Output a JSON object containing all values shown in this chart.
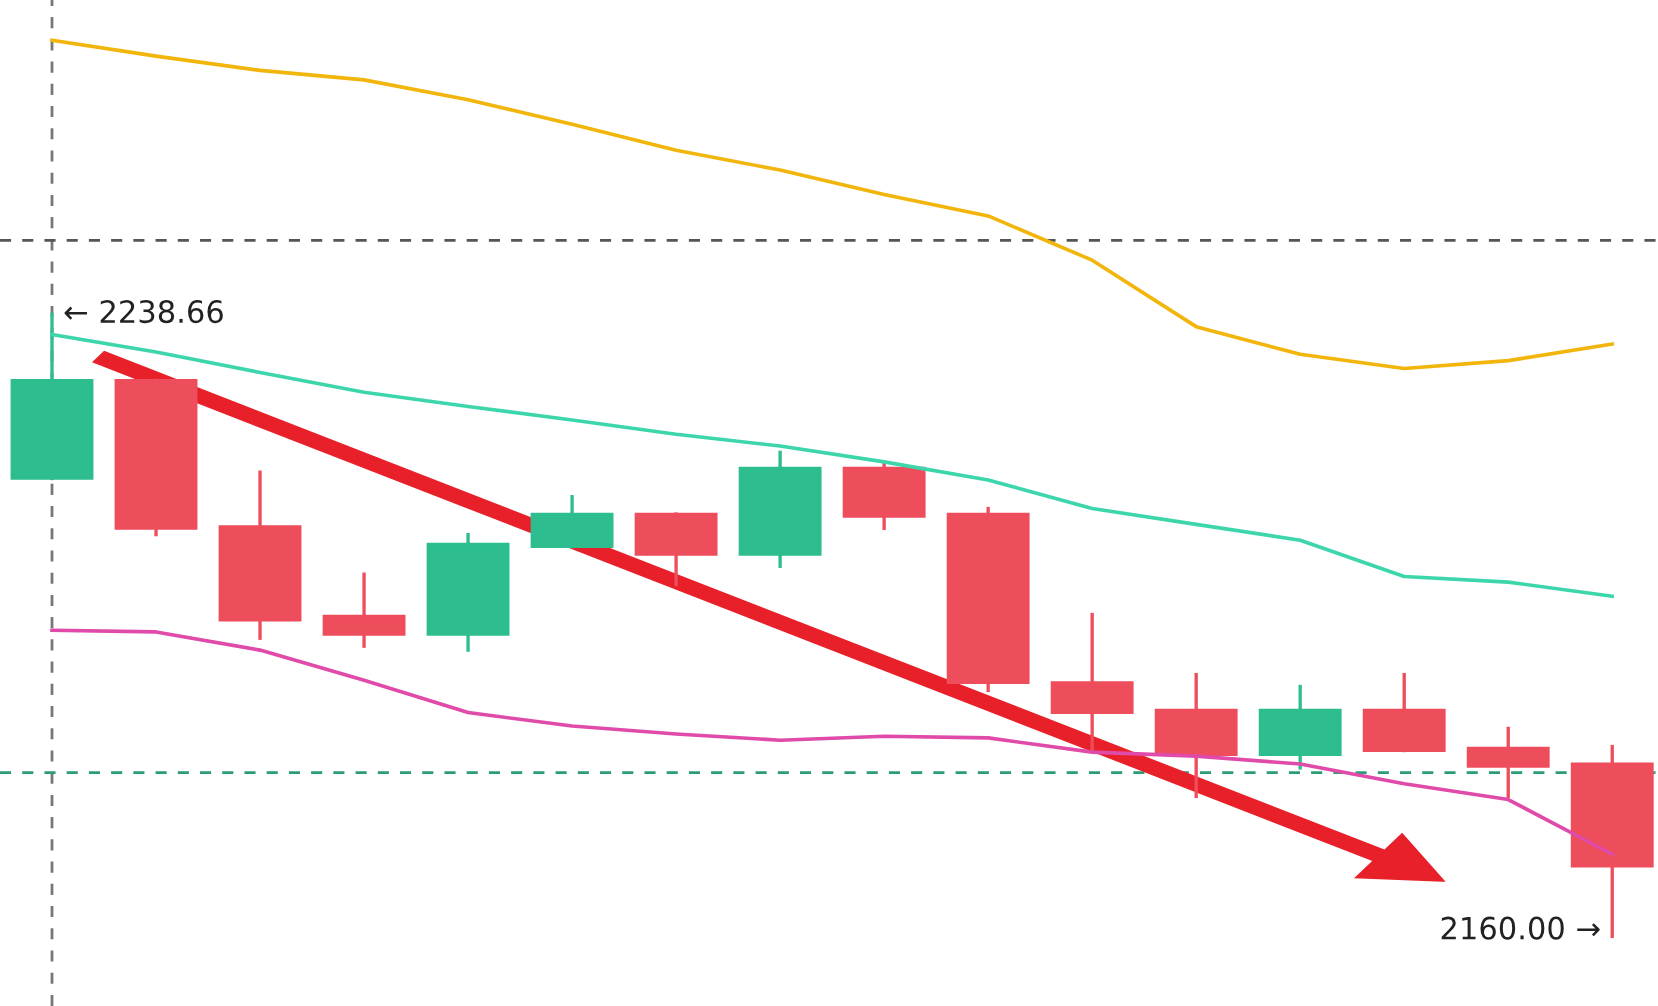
{
  "chart_data": {
    "type": "candlestick",
    "categories": [
      null,
      null,
      null,
      null,
      null,
      null,
      null,
      null,
      null,
      null,
      null,
      null,
      null,
      null,
      null,
      null
    ],
    "ohlc": [
      [
        2217.9,
        2238.66,
        2217.9,
        2230.3
      ],
      [
        2230.3,
        2230.3,
        2210.8,
        2211.6
      ],
      [
        2211.8,
        2218.7,
        2197.7,
        2200.0
      ],
      [
        2200.5,
        2205.8,
        2196.7,
        2198.2
      ],
      [
        2198.2,
        2210.8,
        2196.2,
        2209.6
      ],
      [
        2209.3,
        2215.6,
        2209.3,
        2213.4
      ],
      [
        2213.4,
        2213.4,
        2204.5,
        2208.3
      ],
      [
        2208.3,
        2221.2,
        2206.8,
        2219.2
      ],
      [
        2219.2,
        2219.9,
        2211.6,
        2213.1
      ],
      [
        2213.4,
        2214.1,
        2191.1,
        2192.1
      ],
      [
        2192.1,
        2200.7,
        2183.5,
        2188.3
      ],
      [
        2188.6,
        2193.1,
        2177.7,
        2183.0
      ],
      [
        2183.0,
        2191.6,
        2181.3,
        2188.6
      ],
      [
        2188.6,
        2193.1,
        2183.5,
        2183.5
      ],
      [
        2183.8,
        2186.3,
        2177.7,
        2181.5
      ],
      [
        2181.8,
        2184.0,
        2160.0,
        2168.9
      ]
    ],
    "colors": [
      "#2dbd8e",
      "#ee4d5c",
      "#ee4d5c",
      "#ee4d5c",
      "#2dbd8e",
      "#2dbd8e",
      "#ee4d5c",
      "#2dbd8e",
      "#ee4d5c",
      "#ee4d5c",
      "#ee4d5c",
      "#ee4d5c",
      "#2dbd8e",
      "#ee4d5c",
      "#ee4d5c",
      "#ee4d5c"
    ],
    "series": [
      {
        "type": "line",
        "color": "#f2b50c",
        "values": [
          2273.3,
          2271.3,
          2269.5,
          2268.3,
          2265.8,
          2262.7,
          2259.4,
          2256.9,
          2253.8,
          2251.1,
          2245.5,
          2237.1,
          2233.6,
          2231.8,
          2232.8,
          2234.9
        ]
      },
      {
        "type": "line",
        "color": "#3dd6ac",
        "values": [
          2236.1,
          2233.9,
          2231.3,
          2228.8,
          2227.0,
          2225.3,
          2223.5,
          2222.0,
          2220.0,
          2217.7,
          2214.1,
          2212.1,
          2210.1,
          2205.5,
          2204.8,
          2203.0
        ]
      },
      {
        "type": "line",
        "color": "#e04aa8",
        "values": [
          2198.7,
          2198.5,
          2196.2,
          2192.4,
          2188.3,
          2186.6,
          2185.6,
          2184.8,
          2185.3,
          2185.1,
          2183.3,
          2182.8,
          2181.8,
          2179.3,
          2177.3,
          2170.4
        ]
      }
    ],
    "ylim": [
      2151.2,
      2278.4
    ],
    "grid": false,
    "ref_lines": [
      {
        "axis": "y",
        "value": 2248.0,
        "color": "#555555",
        "line_style": "dashed"
      },
      {
        "axis": "y",
        "value": 2180.7,
        "color": "#2a9d78",
        "line_style": "dashed"
      }
    ],
    "annotations": [
      "← 2238.66",
      "2160.00 →"
    ]
  }
}
